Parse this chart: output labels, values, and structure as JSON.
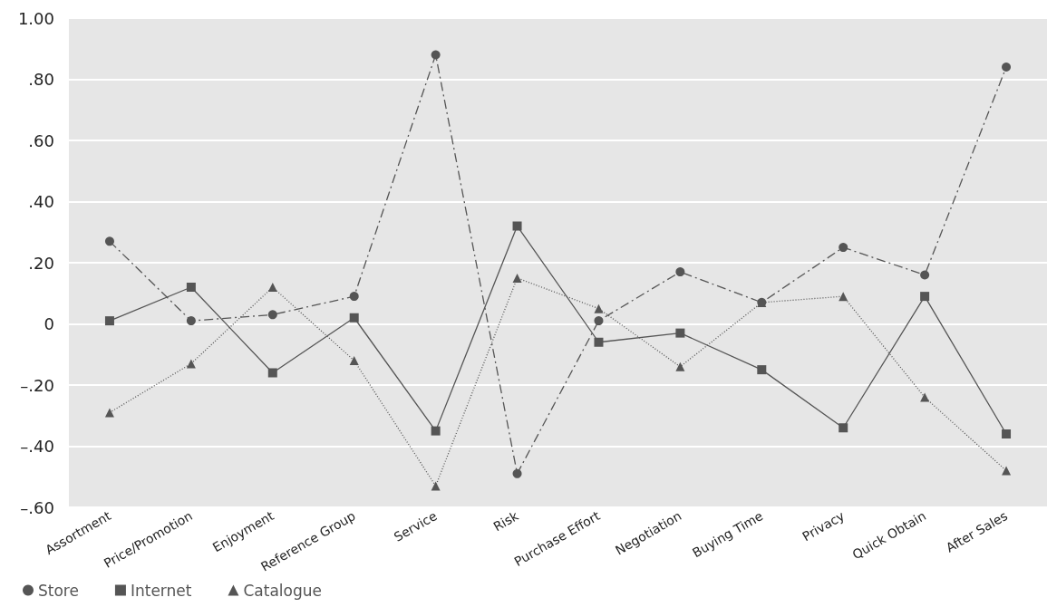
{
  "chart_data": {
    "type": "line",
    "categories": [
      "Assortment",
      "Price/Promotion",
      "Enjoyment",
      "Reference Group",
      "Service",
      "Risk",
      "Purchase Effort",
      "Negotiation",
      "Buying Time",
      "Privacy",
      "Quick Obtain",
      "After Sales"
    ],
    "series": [
      {
        "name": "Store",
        "color": "#555555",
        "marker": "circle",
        "line_style": "dashed",
        "values": [
          0.27,
          0.01,
          0.03,
          0.09,
          0.88,
          -0.49,
          0.01,
          0.17,
          0.07,
          0.25,
          0.16,
          0.84
        ]
      },
      {
        "name": "Internet",
        "color": "#555555",
        "marker": "square",
        "line_style": "solid",
        "values": [
          0.01,
          0.12,
          -0.16,
          0.02,
          -0.35,
          0.32,
          -0.06,
          -0.03,
          -0.15,
          -0.34,
          0.09,
          -0.36
        ]
      },
      {
        "name": "Catalogue",
        "color": "#555555",
        "marker": "triangle",
        "line_style": "dotted",
        "values": [
          -0.29,
          -0.13,
          0.12,
          -0.12,
          -0.53,
          0.15,
          0.05,
          -0.14,
          0.07,
          0.09,
          -0.24,
          -0.48
        ]
      }
    ],
    "ylim": [
      -0.6,
      1.0
    ],
    "yticks": [
      {
        "value": -0.6,
        "label": "–.60"
      },
      {
        "value": -0.4,
        "label": "–.40"
      },
      {
        "value": -0.2,
        "label": "–.20"
      },
      {
        "value": 0,
        "label": "0"
      },
      {
        "value": 0.2,
        "label": ".20"
      },
      {
        "value": 0.4,
        "label": ".40"
      },
      {
        "value": 0.6,
        "label": ".60"
      },
      {
        "value": 0.8,
        "label": ".80"
      },
      {
        "value": 1.0,
        "label": "1.00"
      }
    ],
    "grid": "y",
    "legend": "bottom left"
  }
}
